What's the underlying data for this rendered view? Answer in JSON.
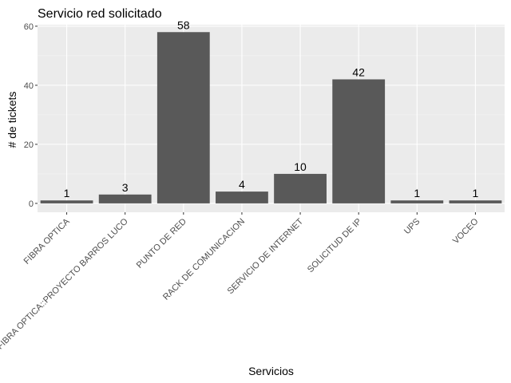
{
  "chart_data": {
    "type": "bar",
    "title": "Servicio red solicitado",
    "xlabel": "Servicios",
    "ylabel": "# de tickets",
    "categories": [
      "FIBRA OPTICA",
      "FIBRA OPTICA::PROYECTO BARROS LUCO",
      "PUNTO DE RED",
      "RACK DE COMUNICACION",
      "SERVICIO DE INTERNET",
      "SOLICITUD DE IP",
      "UPS",
      "VOCEO"
    ],
    "values": [
      1,
      3,
      58,
      4,
      10,
      42,
      1,
      1
    ],
    "data_labels": [
      "1",
      "3",
      "58",
      "4",
      "10",
      "42",
      "1",
      "1"
    ],
    "yticks": [
      0,
      20,
      40,
      60
    ],
    "ytick_labels": [
      "0",
      "20",
      "40",
      "60"
    ],
    "ylim": [
      -3,
      60.5
    ],
    "grid": true,
    "legend": "none",
    "colors": {
      "bar": "#595959",
      "panel": "#ebebeb",
      "grid_major": "#ffffff",
      "grid_minor": "#f5f5f5"
    }
  }
}
